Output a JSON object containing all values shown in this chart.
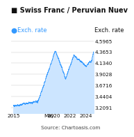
{
  "title": "■ Swiss Franc / Peruvian Nuev",
  "legend_label": "Exch. rate",
  "ylabel_top": "Exch. rate",
  "source": "Source: Chartoasis.com",
  "yticks": [
    3.2091,
    3.4404,
    3.6716,
    3.9028,
    4.134,
    4.3653,
    4.5965
  ],
  "ylim": [
    3.1,
    4.72
  ],
  "xlim_start": 2014.7,
  "xlim_end": 2024.95,
  "xtick_labels": [
    "2015",
    "May",
    "2020",
    "2022",
    "2024"
  ],
  "xtick_positions": [
    2015.0,
    2019.4,
    2020.0,
    2022.0,
    2024.0
  ],
  "line_color": "#3399ff",
  "fill_color": "#cce5ff",
  "background_color": "#ffffff",
  "title_fontsize": 7.0,
  "legend_fontsize": 6.0,
  "ylabel_fontsize": 6.0,
  "tick_fontsize": 5.2,
  "source_fontsize": 5.2,
  "legend_dot_color": "#3399ff"
}
